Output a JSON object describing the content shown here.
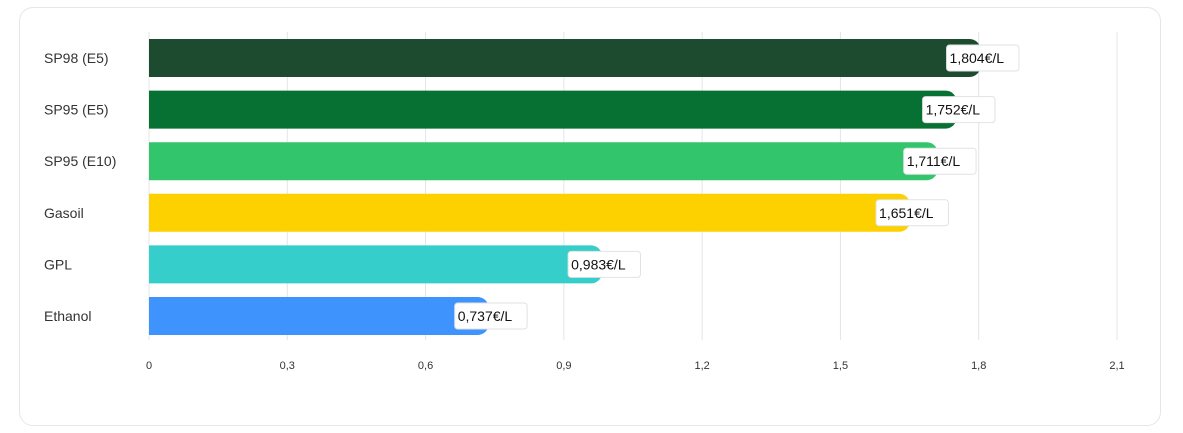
{
  "chart_data": {
    "type": "bar",
    "orientation": "horizontal",
    "title": "",
    "xlabel": "",
    "ylabel": "",
    "categories": [
      "SP98 (E5)",
      "SP95 (E5)",
      "SP95 (E10)",
      "Gasoil",
      "GPL",
      "Ethanol"
    ],
    "values": [
      1.804,
      1.752,
      1.711,
      1.651,
      0.983,
      0.737
    ],
    "value_labels": [
      "1,804€/L",
      "1,752€/L",
      "1,711€/L",
      "1,651€/L",
      "0,983€/L",
      "0,737€/L"
    ],
    "colors": [
      "#1c4b2f",
      "#067133",
      "#32c56c",
      "#fdd000",
      "#36cecb",
      "#3e93fc"
    ],
    "xlim": [
      0,
      2.1
    ],
    "xticks": [
      0,
      0.3,
      0.6,
      0.9,
      1.2,
      1.5,
      1.8,
      2.1
    ],
    "xtick_labels": [
      "0",
      "0,3",
      "0,6",
      "0,9",
      "1,2",
      "1,5",
      "1,8",
      "2,1"
    ],
    "grid": true,
    "legend": "none"
  }
}
